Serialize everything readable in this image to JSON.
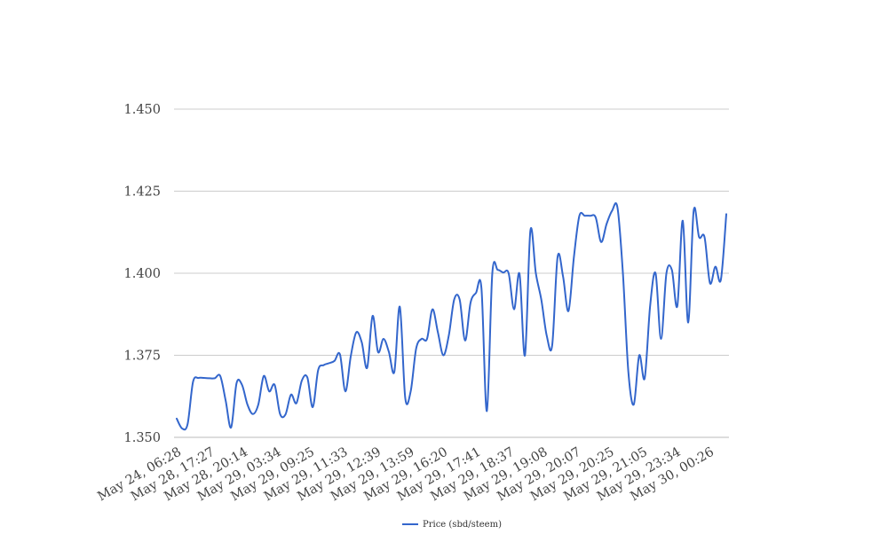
{
  "chart_data": {
    "type": "line",
    "title": "",
    "xlabel": "",
    "ylabel": "",
    "ylim": [
      1.35,
      1.45
    ],
    "yticks": [
      "1.350",
      "1.375",
      "1.400",
      "1.425",
      "1.450"
    ],
    "grid": true,
    "legend_position": "bottom-center",
    "x_tick_labels": [
      "May 24, 06:28",
      "May 28, 17:27",
      "May 28, 20:14",
      "May 29, 03:34",
      "May 29, 09:25",
      "May 29, 11:33",
      "May 29, 12:39",
      "May 29, 13:59",
      "May 29, 16:20",
      "May 29, 17:41",
      "May 29, 18:37",
      "May 29, 19:08",
      "May 29, 20:07",
      "May 29, 20:25",
      "May 29, 21:05",
      "May 29, 23:34",
      "May 30, 00:26"
    ],
    "line_color": "#3366cc",
    "series": [
      {
        "name": "Price (sbd/steem)",
        "values": [
          1.3557,
          1.3527,
          1.354,
          1.3669,
          1.3681,
          1.3681,
          1.368,
          1.368,
          1.3687,
          1.3612,
          1.353,
          1.3665,
          1.366,
          1.36,
          1.3571,
          1.36,
          1.3687,
          1.364,
          1.366,
          1.3571,
          1.357,
          1.363,
          1.3604,
          1.3673,
          1.3683,
          1.3592,
          1.3705,
          1.372,
          1.3726,
          1.3733,
          1.3753,
          1.364,
          1.3748,
          1.382,
          1.379,
          1.3712,
          1.387,
          1.376,
          1.38,
          1.376,
          1.37,
          1.3898,
          1.362,
          1.364,
          1.377,
          1.38,
          1.38,
          1.389,
          1.382,
          1.375,
          1.381,
          1.392,
          1.392,
          1.3795,
          1.391,
          1.394,
          1.3955,
          1.358,
          1.4,
          1.401,
          1.4002,
          1.4,
          1.389,
          1.3998,
          1.375,
          1.413,
          1.4,
          1.392,
          1.381,
          1.378,
          1.405,
          1.399,
          1.3885,
          1.405,
          1.4175,
          1.4175,
          1.4175,
          1.417,
          1.4095,
          1.415,
          1.419,
          1.42,
          1.4,
          1.37,
          1.36,
          1.375,
          1.368,
          1.39,
          1.4,
          1.38,
          1.4,
          1.401,
          1.39,
          1.416,
          1.385,
          1.419,
          1.411,
          1.411,
          1.397,
          1.402,
          1.398,
          1.418
        ]
      }
    ]
  }
}
